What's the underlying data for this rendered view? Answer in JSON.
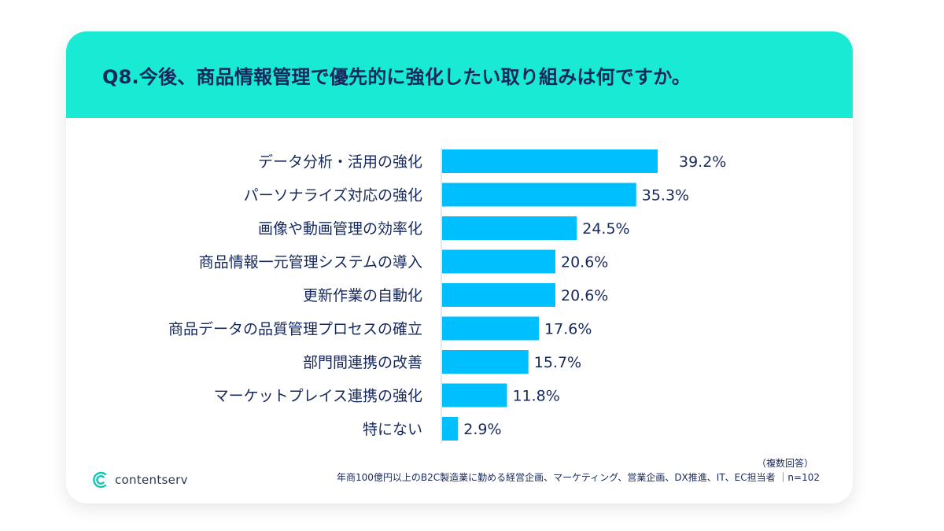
{
  "title": "Q8.今後、商品情報管理で優先的に強化したい取り組みは何ですか。",
  "chart_data": {
    "type": "bar",
    "orientation": "horizontal",
    "categories": [
      "データ分析・活用の強化",
      "パーソナライズ対応の強化",
      "画像や動画管理の効率化",
      "商品情報一元管理システムの導入",
      "更新作業の自動化",
      "商品データの品質管理プロセスの確立",
      "部門間連携の改善",
      "マーケットプレイス連携の強化",
      "特にない"
    ],
    "values": [
      39.2,
      35.3,
      24.5,
      20.6,
      20.6,
      17.6,
      15.7,
      11.8,
      2.9
    ],
    "value_labels": [
      "39.2%",
      "35.3%",
      "24.5%",
      "20.6%",
      "20.6%",
      "17.6%",
      "15.7%",
      "11.8%",
      "2.9%"
    ],
    "unit": "%",
    "xlim": [
      0,
      100
    ],
    "bar_color": "#00bfff",
    "title": "Q8.今後、商品情報管理で優先的に強化したい取り組みは何ですか。"
  },
  "footer": {
    "note1": "（複数回答）",
    "note2": "年商100億円以上のB2C製造業に勤める経営企画、マーケティング、営業企画、DX推進、IT、EC担当者 ｜n=102",
    "logo_text": "contentserv"
  },
  "colors": {
    "header_bg": "#18ead3",
    "text": "#17285c",
    "bar": "#00bfff"
  }
}
